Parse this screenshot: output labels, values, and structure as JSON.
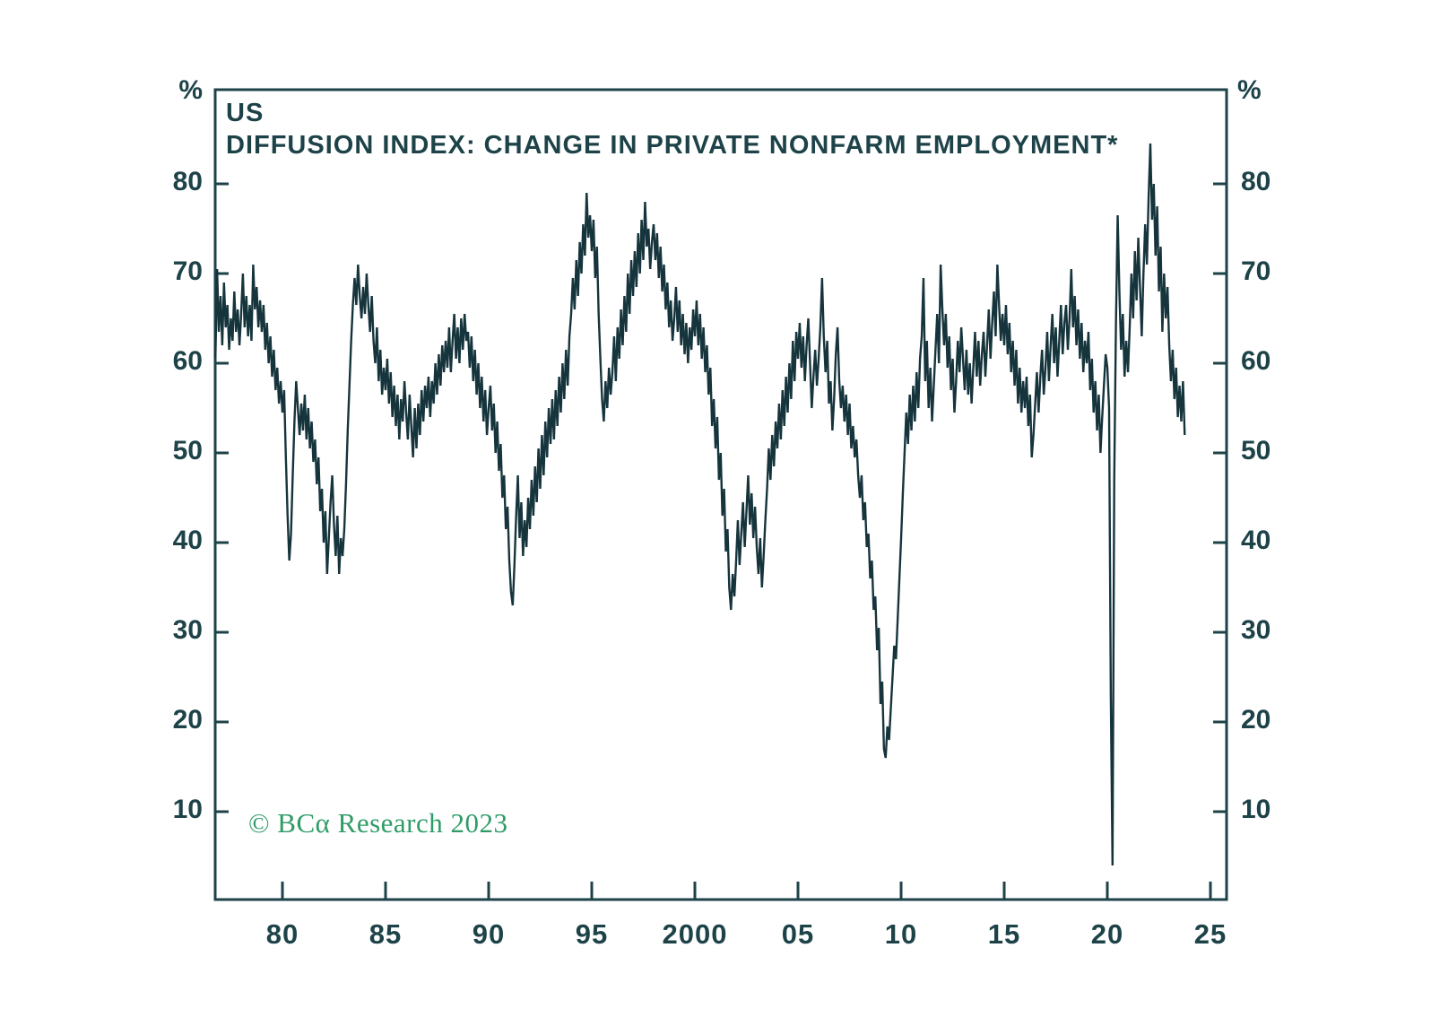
{
  "header": {
    "region": "US",
    "title": "DIFFUSION INDEX: CHANGE IN PRIVATE NONFARM EMPLOYMENT*"
  },
  "axes": {
    "unit_left": "%",
    "unit_right": "%"
  },
  "footer": {
    "copyright": "© BCα Research 2023"
  },
  "colors": {
    "line": "#16343C",
    "text": "#1D4349",
    "accent_green": "#2F9C68",
    "background": "#FFFFFF"
  },
  "chart_data": {
    "type": "line",
    "title": "US DIFFUSION INDEX: CHANGE IN PRIVATE NONFARM EMPLOYMENT*",
    "xlabel": "",
    "ylabel": "%",
    "legend": "none",
    "grid": false,
    "xlim": [
      1976.74,
      2025.78
    ],
    "ylim": [
      0.2,
      90.5
    ],
    "y_ticks": [
      {
        "value": 80,
        "label": "80"
      },
      {
        "value": 70,
        "label": "70"
      },
      {
        "value": 60,
        "label": "60"
      },
      {
        "value": 50,
        "label": "50"
      },
      {
        "value": 40,
        "label": "40"
      },
      {
        "value": 30,
        "label": "30"
      },
      {
        "value": 20,
        "label": "20"
      },
      {
        "value": 10,
        "label": "10"
      }
    ],
    "x_ticks": [
      {
        "value": 1980,
        "label": "80"
      },
      {
        "value": 1985,
        "label": "85"
      },
      {
        "value": 1990,
        "label": "90"
      },
      {
        "value": 1995,
        "label": "95"
      },
      {
        "value": 2000,
        "label": "2000"
      },
      {
        "value": 2005,
        "label": "05"
      },
      {
        "value": 2010,
        "label": "10"
      },
      {
        "value": 2015,
        "label": "15"
      },
      {
        "value": 2020,
        "label": "20"
      },
      {
        "value": 2025,
        "label": "25"
      }
    ],
    "x_start": 1976.75,
    "x_step_years": 0.083333,
    "series": [
      {
        "name": "Diffusion index: change in private nonfarm employment",
        "values": [
          60.5,
          70.5,
          63.5,
          67.5,
          62,
          69,
          64,
          66.5,
          61.5,
          65,
          62.5,
          68,
          63.5,
          66,
          62,
          65.5,
          70,
          64,
          67.5,
          63,
          66.5,
          62.5,
          71,
          66,
          68.5,
          64,
          67,
          63.5,
          66.5,
          61.5,
          64.5,
          60,
          63,
          58.5,
          61.5,
          57,
          59.5,
          55.5,
          58,
          54.5,
          57,
          49.5,
          43,
          38,
          41,
          47.5,
          53.5,
          58,
          55,
          52,
          55.5,
          52.5,
          56.5,
          51.5,
          55,
          50.5,
          53.5,
          49,
          51.5,
          46.5,
          49.5,
          43.5,
          46,
          40,
          43.5,
          36.5,
          40.5,
          44.5,
          47.5,
          42,
          38.5,
          43,
          36.5,
          40.5,
          38.5,
          41.5,
          46.5,
          52.5,
          57.5,
          62.5,
          66.5,
          69.5,
          66.5,
          71,
          67.5,
          65,
          68.5,
          65.5,
          70,
          66.5,
          63.5,
          67.5,
          62.5,
          60,
          64,
          58,
          61.5,
          56.5,
          59.5,
          57,
          60.5,
          55.5,
          59,
          54,
          57.5,
          53,
          56.5,
          51.5,
          56,
          53.5,
          58,
          54.5,
          51.5,
          56.5,
          53,
          49.5,
          55,
          50.5,
          55.5,
          52,
          57,
          53.5,
          57.5,
          55,
          58.5,
          54,
          58,
          55.5,
          60,
          56.5,
          61,
          57.5,
          62,
          59,
          62.5,
          59.5,
          64,
          59,
          62.5,
          65.5,
          60.5,
          64,
          60,
          65,
          61.5,
          65.5,
          62.5,
          63.5,
          59.5,
          63,
          58,
          61.5,
          56.5,
          60,
          55,
          58.5,
          53.5,
          57,
          52,
          55,
          57.5,
          52.5,
          55.5,
          50,
          53.5,
          48,
          51,
          45,
          47.5,
          41.5,
          44,
          38,
          34.5,
          33,
          37.5,
          43,
          47.5,
          40.5,
          44.5,
          38.5,
          42.5,
          39.5,
          45,
          41.5,
          47,
          43,
          48.5,
          44.5,
          50.5,
          46,
          52,
          47.5,
          53.5,
          49.5,
          55,
          51,
          56,
          51.5,
          57,
          53,
          58.5,
          54.5,
          60,
          56,
          61.5,
          57.5,
          63,
          65.5,
          69.5,
          66,
          71.5,
          67.5,
          73.5,
          70,
          75.5,
          72,
          79,
          74,
          76.5,
          72.5,
          76,
          69.5,
          73,
          65.5,
          60.5,
          56,
          53.5,
          58,
          55,
          59.5,
          56.5,
          59,
          63,
          58,
          64,
          60.5,
          66,
          62,
          67.5,
          63.5,
          70,
          65.5,
          71.5,
          67.5,
          72.5,
          68.5,
          74.5,
          70,
          76,
          71.5,
          78,
          73,
          75,
          70.5,
          73.5,
          75.5,
          71.5,
          74.5,
          69.5,
          73,
          68,
          71,
          66,
          69,
          64,
          67,
          62.5,
          65,
          68.5,
          63.5,
          67,
          62,
          65.5,
          61,
          64.5,
          60,
          64,
          61.5,
          66,
          63,
          67,
          62,
          65.5,
          60.5,
          64,
          59,
          62,
          56.5,
          59.5,
          53,
          56,
          50.5,
          54,
          47,
          50,
          43,
          46,
          39,
          41.5,
          35,
          32.5,
          36.5,
          34,
          38,
          42.5,
          37.5,
          41,
          44.5,
          39.5,
          43.5,
          47.5,
          42,
          45.5,
          40.5,
          44,
          39.5,
          36.5,
          40.5,
          35,
          38.5,
          42.5,
          46,
          50.5,
          47,
          52,
          48.5,
          53.5,
          50.5,
          55.5,
          51.5,
          57,
          53,
          58.5,
          54.5,
          60,
          56,
          62.5,
          58,
          63.5,
          60.5,
          64.5,
          59.5,
          63,
          58,
          62,
          65,
          60,
          55,
          58.5,
          61.5,
          57.5,
          60.5,
          64,
          69.5,
          63,
          59,
          62.5,
          55.5,
          58,
          52.5,
          56,
          61,
          64,
          58,
          55,
          57.5,
          53.5,
          56.5,
          52,
          55.5,
          50.5,
          53,
          49.5,
          51.5,
          47.5,
          45,
          47.5,
          42.5,
          44.5,
          39.5,
          41,
          36,
          38,
          32.5,
          34,
          28,
          30.5,
          22,
          24.5,
          17,
          16,
          19.5,
          18,
          21.5,
          25,
          28.5,
          27,
          31.5,
          36,
          40.5,
          45.5,
          50,
          54.5,
          51,
          56.5,
          52.5,
          57.5,
          53.5,
          59,
          55,
          60.5,
          63,
          69.5,
          58,
          62.5,
          55,
          59.5,
          53.5,
          57.5,
          61.5,
          65.5,
          60,
          71,
          66,
          62,
          65.5,
          59.5,
          63,
          57,
          60.5,
          54.5,
          58,
          62.5,
          59,
          64,
          60.5,
          57,
          61.5,
          56.5,
          60,
          55.5,
          59.5,
          63.5,
          58.5,
          62.5,
          57.5,
          61,
          63.5,
          58.5,
          62,
          66,
          60.5,
          64.5,
          68,
          63,
          71,
          66.5,
          62.5,
          65.5,
          62,
          66.5,
          61,
          64.5,
          59,
          62.5,
          57.5,
          61.5,
          55.5,
          59.5,
          54.5,
          58,
          55,
          58.5,
          53,
          56.5,
          49.5,
          52,
          55.5,
          59,
          54.5,
          58.5,
          61.5,
          56.5,
          59.5,
          63.5,
          58,
          62,
          65.5,
          60,
          64,
          58.5,
          62.5,
          66.5,
          61,
          64.5,
          66.5,
          61.5,
          65,
          70.5,
          64,
          67.5,
          62,
          66,
          60.5,
          64.5,
          59,
          62.5,
          60,
          63.5,
          57,
          60.5,
          54.5,
          58,
          52.5,
          56.5,
          50,
          54,
          57.5,
          61,
          59.5,
          55,
          23,
          4,
          47,
          64.5,
          76.5,
          68,
          61.5,
          65.5,
          58.5,
          62.5,
          59,
          64,
          70,
          65,
          72.5,
          67,
          74,
          68.5,
          63,
          70,
          75.5,
          71,
          78.5,
          84.5,
          76,
          80,
          72,
          77.5,
          68,
          73,
          63.5,
          70,
          65,
          68.5,
          62,
          58,
          61.5,
          56,
          59.5,
          54,
          57.5,
          53.5,
          58,
          52
        ]
      }
    ]
  }
}
